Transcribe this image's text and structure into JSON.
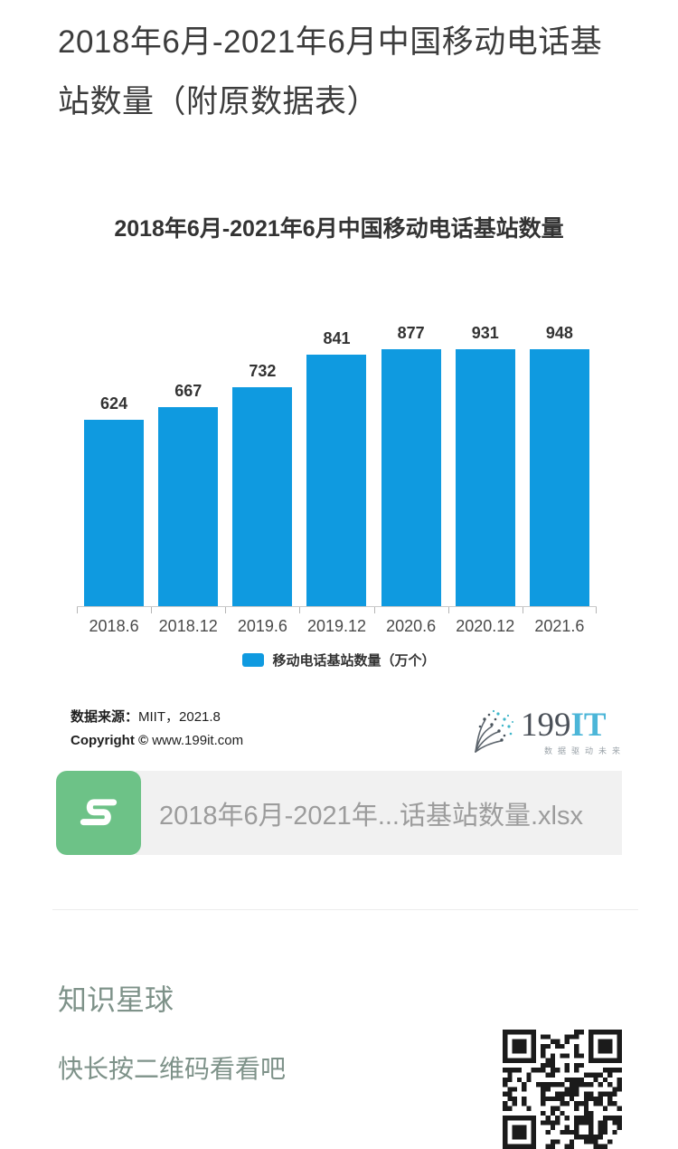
{
  "page_title": "2018年6月-2021年6月中国移动电话基站数量（附原数据表）",
  "chart_data": {
    "type": "bar",
    "title": "2018年6月-2021年6月中国移动电话基站数量",
    "categories": [
      "2018.6",
      "2018.12",
      "2019.6",
      "2019.12",
      "2020.6",
      "2020.12",
      "2021.6"
    ],
    "values": [
      624,
      667,
      732,
      841,
      877,
      931,
      948
    ],
    "series": [
      {
        "name": "移动电话基站数量（万个）",
        "values": [
          624,
          667,
          732,
          841,
          877,
          931,
          948
        ]
      }
    ],
    "legend_label": "移动电话基站数量（万个）",
    "legend_position": "bottom",
    "unit": "万个",
    "bar_color": "#0f9ae0",
    "value_labels_shown": true,
    "grid": false,
    "ylim": [
      0,
      1000
    ],
    "xlabel": "",
    "ylabel": ""
  },
  "source": {
    "prefix": "数据来源：",
    "value": "MIIT，2021.8",
    "copyright_prefix": "Copyright ©",
    "copyright_value": "www.199it.com"
  },
  "logo": {
    "number": "199",
    "suffix": "IT",
    "tagline": "数据驱动未来",
    "icon": "dandelion-icon",
    "accent_color": "#4cb6d8"
  },
  "attachment": {
    "icon": "spreadsheet-s-icon",
    "icon_letter": "S",
    "icon_color": "#6dc287",
    "filename": "2018年6月-2021年...话基站数量.xlsx"
  },
  "footer": {
    "title": "知识星球",
    "subtitle": "快长按二维码看看吧",
    "qr": "qr-code"
  }
}
